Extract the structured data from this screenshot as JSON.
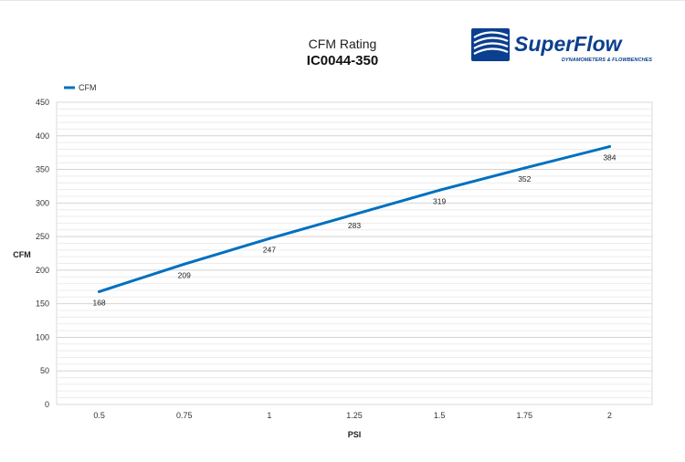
{
  "logo": {
    "wordmark": "SuperFlow",
    "tagline": "DYNAMOMETERS & FLOWBENCHES",
    "brand_color": "#0b3f8f"
  },
  "chart_data": {
    "type": "line",
    "title": "CFM Rating",
    "subtitle": "IC0044-350",
    "xlabel": "PSI",
    "ylabel": "CFM",
    "categories": [
      "0.5",
      "0.75",
      "1",
      "1.25",
      "1.5",
      "1.75",
      "2"
    ],
    "series": [
      {
        "name": "CFM",
        "values": [
          168,
          209,
          247,
          283,
          319,
          352,
          384
        ],
        "color": "#0070c0"
      }
    ],
    "ylim": [
      0,
      450
    ],
    "y_major_step": 50,
    "y_minor_step": 10,
    "yticks": [
      "0",
      "50",
      "100",
      "150",
      "200",
      "250",
      "300",
      "350",
      "400",
      "450"
    ],
    "grid": true,
    "legend": "top-left",
    "data_labels": true
  }
}
